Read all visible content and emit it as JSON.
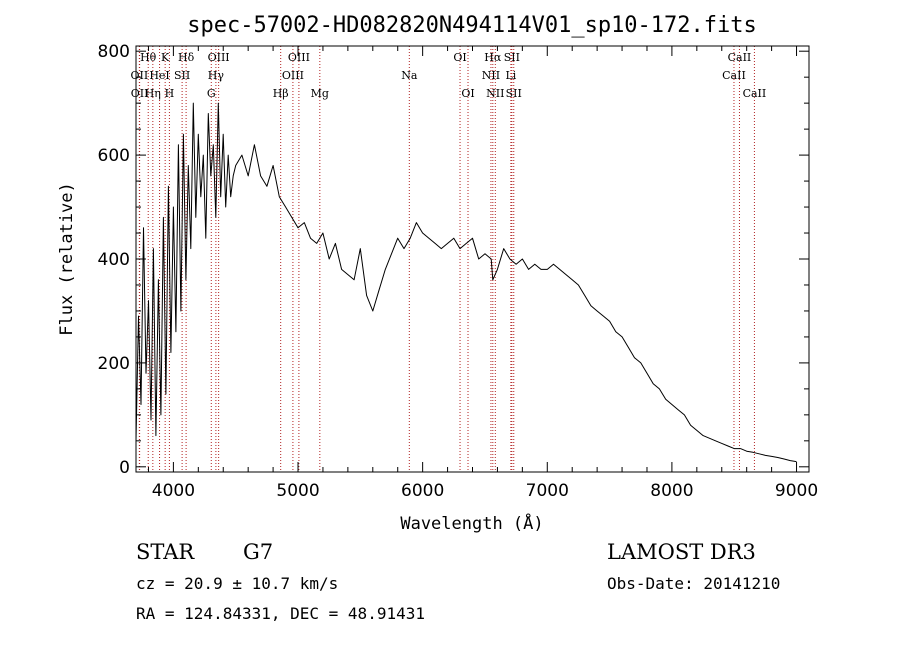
{
  "chart_data": {
    "type": "line",
    "title": "spec-57002-HD082820N494114V01_sp10-172.fits",
    "xlabel": "Wavelength (Å)",
    "ylabel": "Flux (relative)",
    "xlim": [
      3700,
      9100
    ],
    "ylim": [
      -10,
      810
    ],
    "x_ticks": [
      4000,
      5000,
      6000,
      7000,
      8000,
      9000
    ],
    "y_ticks": [
      0,
      200,
      400,
      600,
      800
    ],
    "series": [
      {
        "name": "flux",
        "x": [
          3700,
          3720,
          3740,
          3760,
          3780,
          3800,
          3820,
          3840,
          3860,
          3880,
          3900,
          3920,
          3940,
          3960,
          3980,
          4000,
          4020,
          4040,
          4060,
          4080,
          4100,
          4120,
          4140,
          4160,
          4180,
          4200,
          4220,
          4240,
          4260,
          4280,
          4300,
          4320,
          4340,
          4360,
          4380,
          4400,
          4420,
          4440,
          4460,
          4480,
          4500,
          4550,
          4600,
          4650,
          4700,
          4750,
          4800,
          4850,
          4900,
          4950,
          5000,
          5050,
          5100,
          5150,
          5200,
          5250,
          5300,
          5350,
          5400,
          5450,
          5500,
          5550,
          5600,
          5650,
          5700,
          5750,
          5800,
          5850,
          5900,
          5950,
          6000,
          6050,
          6100,
          6150,
          6200,
          6250,
          6300,
          6350,
          6400,
          6450,
          6500,
          6550,
          6563,
          6600,
          6650,
          6700,
          6750,
          6800,
          6850,
          6900,
          6950,
          7000,
          7050,
          7100,
          7150,
          7200,
          7250,
          7300,
          7350,
          7400,
          7450,
          7500,
          7550,
          7600,
          7650,
          7700,
          7750,
          7800,
          7850,
          7900,
          7950,
          8000,
          8050,
          8100,
          8150,
          8200,
          8250,
          8300,
          8350,
          8400,
          8450,
          8500,
          8550,
          8600,
          8650,
          8700,
          8750,
          8800,
          8850,
          8900,
          8950,
          9000
        ],
        "values": [
          50,
          290,
          120,
          460,
          180,
          320,
          90,
          420,
          60,
          360,
          100,
          480,
          140,
          540,
          220,
          500,
          260,
          620,
          300,
          640,
          360,
          580,
          420,
          700,
          480,
          640,
          520,
          600,
          440,
          680,
          560,
          620,
          480,
          700,
          520,
          640,
          500,
          600,
          520,
          560,
          580,
          600,
          560,
          620,
          560,
          540,
          580,
          520,
          500,
          480,
          460,
          470,
          440,
          430,
          450,
          400,
          430,
          380,
          370,
          360,
          420,
          330,
          300,
          340,
          380,
          410,
          440,
          420,
          440,
          470,
          450,
          440,
          430,
          420,
          430,
          440,
          420,
          430,
          440,
          400,
          410,
          400,
          360,
          380,
          420,
          400,
          390,
          400,
          380,
          390,
          380,
          380,
          390,
          380,
          370,
          360,
          350,
          330,
          310,
          300,
          290,
          280,
          260,
          250,
          230,
          210,
          200,
          180,
          160,
          150,
          130,
          120,
          110,
          100,
          80,
          70,
          60,
          55,
          50,
          45,
          40,
          35,
          35,
          30,
          28,
          25,
          22,
          20,
          18,
          15,
          12,
          10
        ]
      }
    ],
    "spectral_lines": [
      {
        "label": "Hθ",
        "x": 3798,
        "row": 0
      },
      {
        "label": "OII",
        "x": 3727,
        "row": 1
      },
      {
        "label": "OII",
        "x": 3729,
        "row": 2
      },
      {
        "label": "K",
        "x": 3934,
        "row": 0
      },
      {
        "label": "HeI",
        "x": 3889,
        "row": 1
      },
      {
        "label": "Hη",
        "x": 3835,
        "row": 2
      },
      {
        "label": "Hδ",
        "x": 4102,
        "row": 0
      },
      {
        "label": "SII",
        "x": 4070,
        "row": 1
      },
      {
        "label": "H",
        "x": 3968,
        "row": 2
      },
      {
        "label": "OIII",
        "x": 4363,
        "row": 0
      },
      {
        "label": "Hγ",
        "x": 4341,
        "row": 1
      },
      {
        "label": "G",
        "x": 4304,
        "row": 2
      },
      {
        "label": "OIII",
        "x": 5007,
        "row": 0
      },
      {
        "label": "OIII",
        "x": 4959,
        "row": 1
      },
      {
        "label": "Hβ",
        "x": 4861,
        "row": 2
      },
      {
        "label": "Mg",
        "x": 5175,
        "row": 2
      },
      {
        "label": "Na",
        "x": 5893,
        "row": 1
      },
      {
        "label": "OI",
        "x": 6300,
        "row": 0
      },
      {
        "label": "OI",
        "x": 6364,
        "row": 2
      },
      {
        "label": "Hα",
        "x": 6563,
        "row": 0
      },
      {
        "label": "SII",
        "x": 6716,
        "row": 0
      },
      {
        "label": "NII",
        "x": 6548,
        "row": 1
      },
      {
        "label": "Li",
        "x": 6708,
        "row": 1
      },
      {
        "label": "NII",
        "x": 6583,
        "row": 2
      },
      {
        "label": "SII",
        "x": 6731,
        "row": 2
      },
      {
        "label": "CaII",
        "x": 8542,
        "row": 0
      },
      {
        "label": "CaII",
        "x": 8498,
        "row": 1
      },
      {
        "label": "CaII",
        "x": 8662,
        "row": 2
      }
    ],
    "line_marker_color": "#b22222",
    "series_color": "#000000"
  },
  "info": {
    "object_type": "STAR",
    "subclass": "G7",
    "survey": "LAMOST DR3",
    "cz": "cz = 20.9 ± 10.7 km/s",
    "obs_date": "Obs-Date: 20141210",
    "coords": "RA = 124.84331, DEC =  48.91431"
  }
}
